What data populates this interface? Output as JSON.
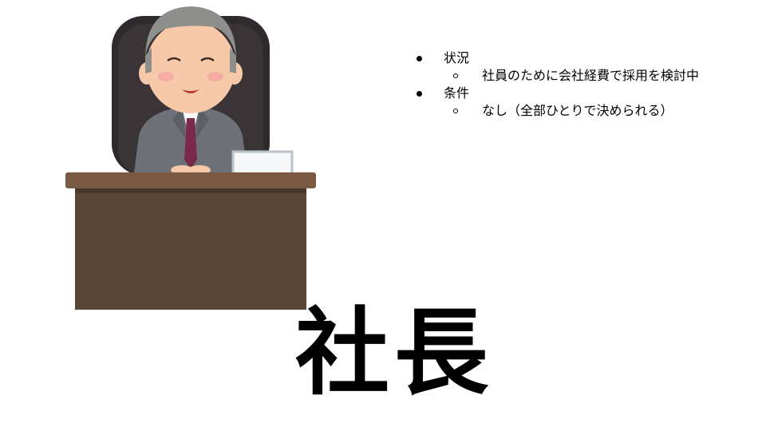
{
  "bullets": [
    {
      "label": "状況",
      "children": [
        "社員のために会社経費で採用を検討中"
      ]
    },
    {
      "label": "条件",
      "children": [
        "なし（全部ひとりで決められる）"
      ]
    }
  ],
  "title": "社長",
  "colors": {
    "chair": "#2f2a2d",
    "suit": "#6e7177",
    "tie": "#7a2a48",
    "skin": "#f7c9a8",
    "hair": "#8e8e8c",
    "desk_top": "#7a5a43",
    "desk_body": "#5b4536"
  }
}
